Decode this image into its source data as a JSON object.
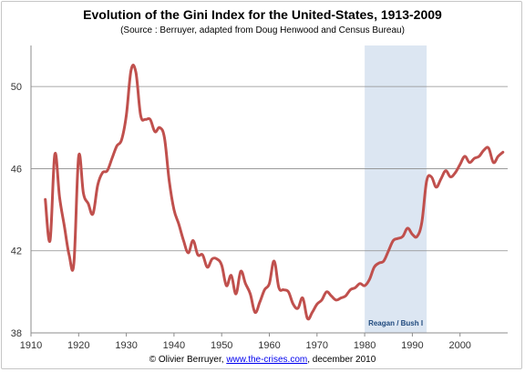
{
  "chart_data": {
    "type": "line",
    "title": "Evolution of the Gini Index for the United-States, 1913-2009",
    "subtitle": "(Source : Berruyer,  adapted from Doug Henwood and Census Bureau)",
    "xlim": [
      1910,
      2010
    ],
    "ylim": [
      38,
      52
    ],
    "x_ticks": [
      1910,
      1920,
      1930,
      1940,
      1950,
      1960,
      1970,
      1980,
      1990,
      2000
    ],
    "y_ticks": [
      38,
      42,
      46,
      50
    ],
    "grid": "horizontal",
    "series": [
      {
        "color": "#c0504d",
        "x": [
          1913,
          1914,
          1915,
          1916,
          1917,
          1918,
          1919,
          1920,
          1921,
          1922,
          1923,
          1924,
          1925,
          1926,
          1927,
          1928,
          1929,
          1930,
          1931,
          1932,
          1933,
          1934,
          1935,
          1936,
          1937,
          1938,
          1939,
          1940,
          1941,
          1942,
          1943,
          1944,
          1945,
          1946,
          1947,
          1948,
          1949,
          1950,
          1951,
          1952,
          1953,
          1954,
          1955,
          1956,
          1957,
          1958,
          1959,
          1960,
          1961,
          1962,
          1963,
          1964,
          1965,
          1966,
          1967,
          1968,
          1969,
          1970,
          1971,
          1972,
          1973,
          1974,
          1975,
          1976,
          1977,
          1978,
          1979,
          1980,
          1981,
          1982,
          1983,
          1984,
          1985,
          1986,
          1987,
          1988,
          1989,
          1990,
          1991,
          1992,
          1993,
          1994,
          1995,
          1996,
          1997,
          1998,
          1999,
          2000,
          2001,
          2002,
          2003,
          2004,
          2005,
          2006,
          2007,
          2008,
          2009
        ],
        "values": [
          44.5,
          42.5,
          46.7,
          44.6,
          43.2,
          41.8,
          41.4,
          46.6,
          44.8,
          44.3,
          43.8,
          45.2,
          45.8,
          45.9,
          46.5,
          47.1,
          47.4,
          48.6,
          50.8,
          50.7,
          48.6,
          48.4,
          48.4,
          47.8,
          48.0,
          47.5,
          45.4,
          44.0,
          43.3,
          42.5,
          41.9,
          42.5,
          41.8,
          41.8,
          41.2,
          41.6,
          41.6,
          41.3,
          40.3,
          40.8,
          39.9,
          41.0,
          40.4,
          39.9,
          39.0,
          39.5,
          40.1,
          40.4,
          41.5,
          40.2,
          40.1,
          40.0,
          39.4,
          39.2,
          39.7,
          38.7,
          39.0,
          39.4,
          39.6,
          40.0,
          39.8,
          39.6,
          39.7,
          39.8,
          40.1,
          40.2,
          40.4,
          40.3,
          40.6,
          41.2,
          41.4,
          41.5,
          42.0,
          42.5,
          42.6,
          42.7,
          43.1,
          42.8,
          42.7,
          43.4,
          45.4,
          45.6,
          45.1,
          45.5,
          45.9,
          45.6,
          45.8,
          46.2,
          46.6,
          46.3,
          46.5,
          46.6,
          46.9,
          47.0,
          46.3,
          46.6,
          46.8
        ]
      }
    ],
    "annotations": [
      {
        "label": "Reagan / Bush I",
        "x_start": 1980,
        "x_end": 1993
      }
    ]
  },
  "credit": {
    "prefix": "© Olivier Berruyer, ",
    "link": "www.the-crises.com",
    "suffix": ", december 2010"
  }
}
